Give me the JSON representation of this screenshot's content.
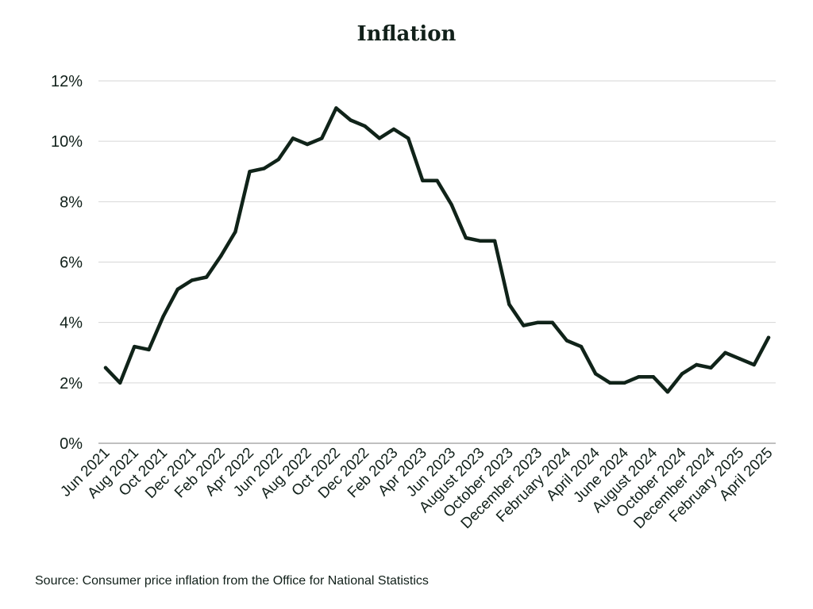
{
  "chart_data": {
    "type": "line",
    "title": "Inflation",
    "source": "Source: Consumer price inflation from the Office for National Statistics",
    "ylim": [
      0,
      12
    ],
    "yticks": [
      "0%",
      "2%",
      "4%",
      "6%",
      "8%",
      "10%",
      "12%"
    ],
    "ytick_values": [
      0,
      2,
      4,
      6,
      8,
      10,
      12
    ],
    "grid": true,
    "colors": {
      "line": "#102319",
      "grid": "#d6d6d6",
      "text": "#11201a"
    },
    "x": [
      "Jun 2021",
      "Jul 2021",
      "Aug 2021",
      "Sep 2021",
      "Oct 2021",
      "Nov 2021",
      "Dec 2021",
      "Jan 2022",
      "Feb 2022",
      "Mar 2022",
      "Apr 2022",
      "May 2022",
      "Jun 2022",
      "Jul 2022",
      "Aug 2022",
      "Sep 2022",
      "Oct 2022",
      "Nov 2022",
      "Dec 2022",
      "Jan 2023",
      "Feb 2023",
      "Mar 2023",
      "Apr 2023",
      "May 2023",
      "Jun 2023",
      "Jul 2023",
      "August 2023",
      "September 2023",
      "October 2023",
      "November 2023",
      "December 2023",
      "January 2024",
      "February 2024",
      "March 2024",
      "April 2024",
      "May 2024",
      "June 2024",
      "July 2024",
      "August 2024",
      "September 2024",
      "October 2024",
      "November 2024",
      "December 2024",
      "January 2025",
      "February 2025",
      "March 2025",
      "April 2025"
    ],
    "xtick_labels": [
      "Jun 2021",
      "Aug 2021",
      "Oct 2021",
      "Dec 2021",
      "Feb 2022",
      "Apr 2022",
      "Jun 2022",
      "Aug 2022",
      "Oct 2022",
      "Dec 2022",
      "Feb 2023",
      "Apr 2023",
      "Jun 2023",
      "August 2023",
      "October 2023",
      "December 2023",
      "February 2024",
      "April 2024",
      "June 2024",
      "August 2024",
      "October 2024",
      "December 2024",
      "February 2025",
      "April 2025"
    ],
    "series": [
      {
        "values": [
          2.5,
          2.0,
          3.2,
          3.1,
          4.2,
          5.1,
          5.4,
          5.5,
          6.2,
          7.0,
          9.0,
          9.1,
          9.4,
          10.1,
          9.9,
          10.1,
          11.1,
          10.7,
          10.5,
          10.1,
          10.4,
          10.1,
          8.7,
          8.7,
          7.9,
          6.8,
          6.7,
          6.7,
          4.6,
          3.9,
          4.0,
          4.0,
          3.4,
          3.2,
          2.3,
          2.0,
          2.0,
          2.2,
          2.2,
          1.7,
          2.3,
          2.6,
          2.5,
          3.0,
          2.8,
          2.6,
          3.5
        ]
      }
    ]
  }
}
